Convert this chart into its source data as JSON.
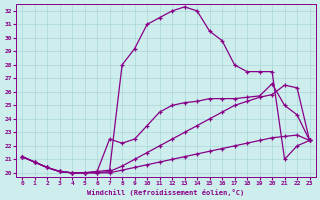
{
  "xlabel": "Windchill (Refroidissement éolien,°C)",
  "background_color": "#ceeeed",
  "grid_color": "#aad8d8",
  "line_color": "#880088",
  "xlim": [
    -0.5,
    23.5
  ],
  "ylim": [
    19.7,
    32.5
  ],
  "yticks": [
    20,
    21,
    22,
    23,
    24,
    25,
    26,
    27,
    28,
    29,
    30,
    31,
    32
  ],
  "xticks": [
    0,
    1,
    2,
    3,
    4,
    5,
    6,
    7,
    8,
    9,
    10,
    11,
    12,
    13,
    14,
    15,
    16,
    17,
    18,
    19,
    20,
    21,
    22,
    23
  ],
  "series": [
    [
      21.2,
      20.8,
      20.4,
      20.1,
      20.0,
      20.0,
      20.0,
      20.0,
      20.2,
      20.4,
      20.6,
      20.8,
      21.0,
      21.2,
      21.4,
      21.6,
      21.8,
      22.0,
      22.2,
      22.4,
      22.6,
      22.7,
      22.8,
      22.4
    ],
    [
      21.2,
      20.8,
      20.4,
      20.1,
      20.0,
      20.0,
      20.0,
      20.1,
      20.5,
      21.0,
      21.5,
      22.0,
      22.5,
      23.0,
      23.5,
      24.0,
      24.5,
      25.0,
      25.3,
      25.6,
      25.8,
      26.5,
      26.3,
      22.4
    ],
    [
      21.2,
      20.8,
      20.4,
      20.1,
      20.0,
      20.0,
      20.1,
      22.5,
      22.2,
      22.5,
      23.5,
      24.5,
      25.0,
      25.2,
      25.3,
      25.5,
      25.5,
      25.5,
      25.6,
      25.7,
      26.6,
      25.0,
      24.3,
      22.4
    ],
    [
      21.2,
      20.8,
      20.4,
      20.1,
      20.0,
      20.0,
      20.1,
      20.2,
      28.0,
      29.2,
      31.0,
      31.5,
      32.0,
      32.3,
      32.0,
      30.5,
      29.8,
      28.0,
      27.5,
      27.5,
      27.5,
      21.0,
      22.0,
      22.4
    ]
  ]
}
